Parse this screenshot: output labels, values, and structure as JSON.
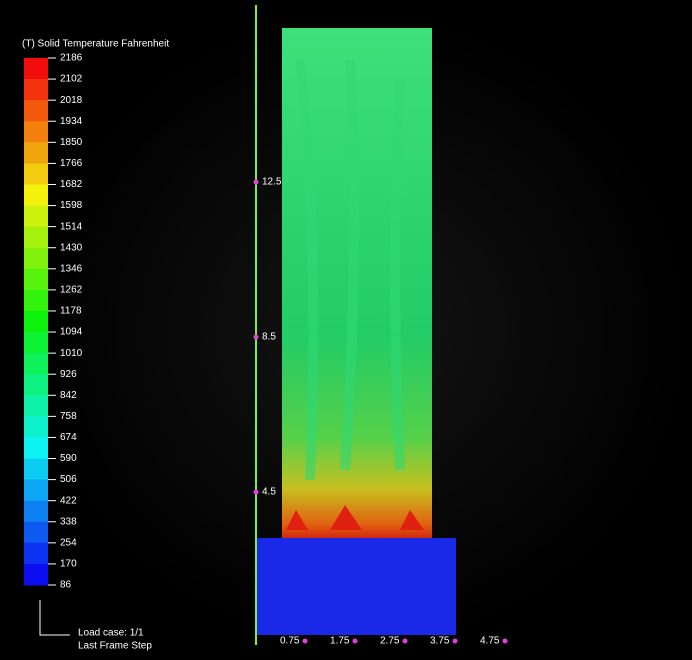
{
  "legend": {
    "title": "(T) Solid Temperature Fahrenheit",
    "ticks": [
      "2186",
      "2102",
      "2018",
      "1934",
      "1850",
      "1766",
      "1682",
      "1598",
      "1514",
      "1430",
      "1346",
      "1262",
      "1178",
      "1094",
      "1010",
      "926",
      "842",
      "758",
      "674",
      "590",
      "506",
      "422",
      "338",
      "254",
      "170",
      "86"
    ]
  },
  "axis": {
    "left_labels": [
      "12.5",
      "8.5",
      "4.5"
    ],
    "bottom_labels": [
      "0.75",
      "1.75",
      "2.75",
      "3.75",
      "4.75"
    ]
  },
  "status": {
    "line1": "Load case: 1/1",
    "line2": "Last Frame Step"
  }
}
